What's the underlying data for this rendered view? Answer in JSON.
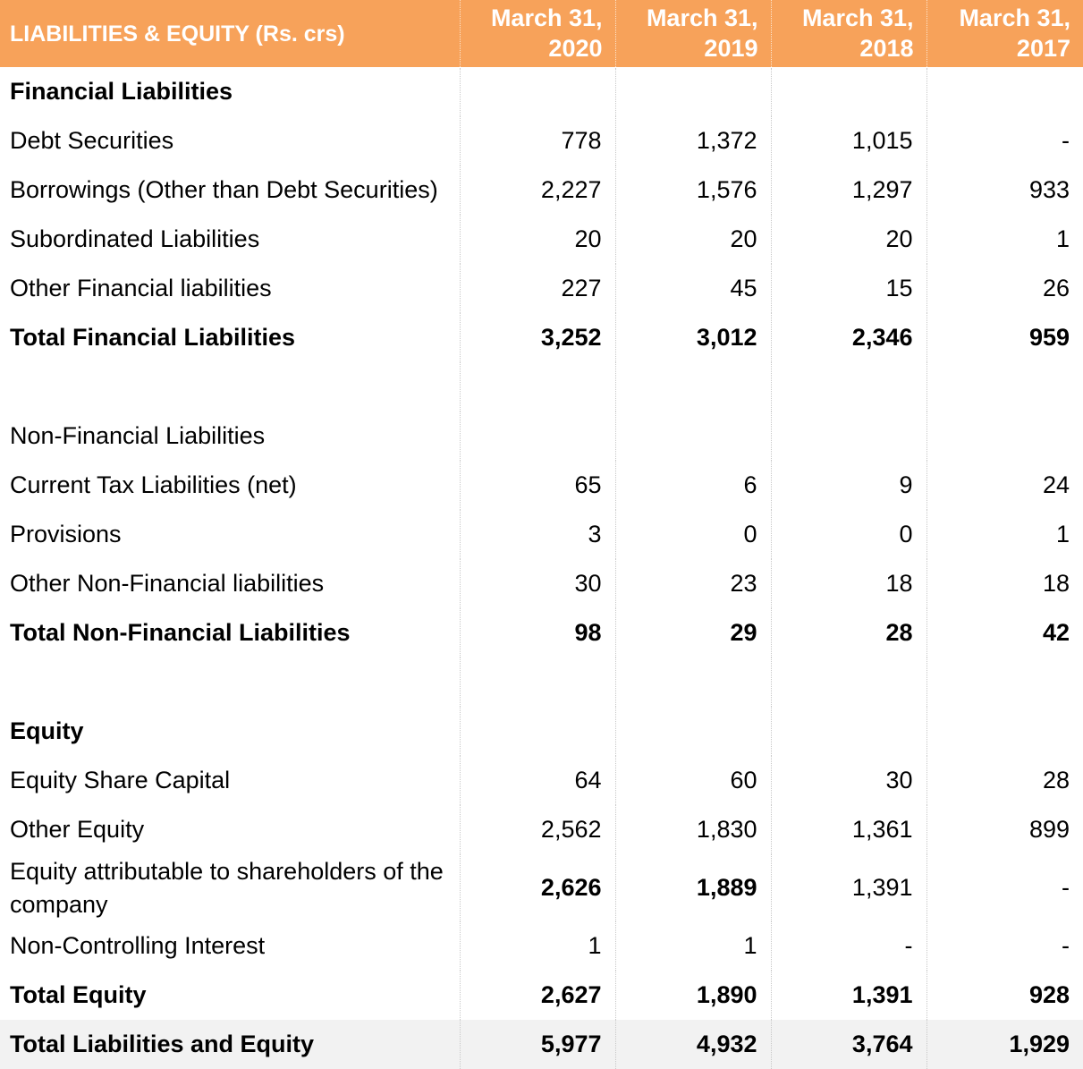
{
  "header": {
    "label": "LIABILITIES & EQUITY (Rs. crs)",
    "years": [
      {
        "line1": "March 31,",
        "line2": "2020"
      },
      {
        "line1": "March 31,",
        "line2": "2019"
      },
      {
        "line1": "March 31,",
        "line2": "2018"
      },
      {
        "line1": "March 31,",
        "line2": "2017"
      }
    ]
  },
  "rows": [
    {
      "label": "Financial Liabilities",
      "values": [
        "",
        "",
        "",
        ""
      ]
    },
    {
      "label": "Debt Securities",
      "values": [
        "778",
        "1,372",
        "1,015",
        "-"
      ]
    },
    {
      "label": "Borrowings (Other than Debt Securities)",
      "values": [
        "2,227",
        "1,576",
        "1,297",
        "933"
      ]
    },
    {
      "label": "Subordinated Liabilities",
      "values": [
        "20",
        "20",
        "20",
        "1"
      ]
    },
    {
      "label": "Other Financial liabilities",
      "values": [
        "227",
        "45",
        "15",
        "26"
      ]
    },
    {
      "label": "Total Financial Liabilities",
      "values": [
        "3,252",
        "3,012",
        "2,346",
        "959"
      ]
    },
    {
      "label": "",
      "values": [
        "",
        "",
        "",
        ""
      ]
    },
    {
      "label": "Non-Financial Liabilities",
      "values": [
        "",
        "",
        "",
        ""
      ]
    },
    {
      "label": "Current Tax Liabilities (net)",
      "values": [
        "65",
        "6",
        "9",
        "24"
      ]
    },
    {
      "label": "Provisions",
      "values": [
        "3",
        "0",
        "0",
        "1"
      ]
    },
    {
      "label": "Other Non-Financial liabilities",
      "values": [
        "30",
        "23",
        "18",
        "18"
      ]
    },
    {
      "label": "Total Non-Financial Liabilities",
      "values": [
        "98",
        "29",
        "28",
        "42"
      ]
    },
    {
      "label": "",
      "values": [
        "",
        "",
        "",
        ""
      ]
    },
    {
      "label": "Equity",
      "values": [
        "",
        "",
        "",
        ""
      ]
    },
    {
      "label": "Equity Share Capital",
      "values": [
        "64",
        "60",
        "30",
        "28"
      ]
    },
    {
      "label": "Other Equity",
      "values": [
        "2,562",
        "1,830",
        "1,361",
        "899"
      ]
    },
    {
      "label": "Equity attributable to shareholders of the company",
      "values": [
        "2,626",
        "1,889",
        "1,391",
        "-"
      ]
    },
    {
      "label": "Non-Controlling Interest",
      "values": [
        "1",
        "1",
        "-",
        "-"
      ]
    },
    {
      "label": "Total Equity",
      "values": [
        "2,627",
        "1,890",
        "1,391",
        "928"
      ]
    },
    {
      "label": "Total Liabilities and Equity",
      "values": [
        "5,977",
        "4,932",
        "3,764",
        "1,929"
      ]
    }
  ],
  "colors": {
    "header_bg": "#f7a25a",
    "header_text": "#ffffff",
    "total_row_bg": "#f2f2f2"
  }
}
